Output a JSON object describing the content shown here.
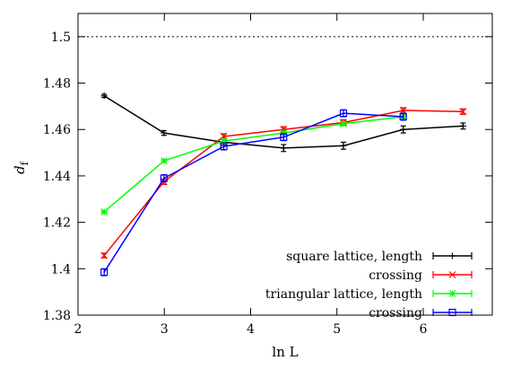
{
  "chart_data": {
    "type": "line",
    "xlabel": "ln L",
    "ylabel": "d_f",
    "xlim": [
      2,
      6.8
    ],
    "ylim": [
      1.38,
      1.51
    ],
    "x_ticks": [
      "2",
      "3",
      "4",
      "5",
      "6"
    ],
    "y_ticks": [
      "1.38",
      "1.4",
      "1.42",
      "1.44",
      "1.46",
      "1.48",
      "1.5"
    ],
    "grid": false,
    "legend_position": "bottom-right",
    "reference_line": {
      "y": 1.5,
      "style": "dotted"
    },
    "series": [
      {
        "name": "square lattice, length",
        "color": "#000000",
        "marker": "plus",
        "x": [
          2.303,
          2.996,
          3.689,
          4.382,
          5.075,
          5.768,
          6.461
        ],
        "y": [
          1.4745,
          1.4585,
          1.4545,
          1.452,
          1.453,
          1.46,
          1.4615
        ],
        "err": [
          0.0007,
          0.001,
          0.0012,
          0.0015,
          0.0015,
          0.0015,
          0.0013
        ]
      },
      {
        "name": "crossing",
        "color": "#ff0000",
        "marker": "x",
        "x": [
          2.303,
          2.996,
          3.689,
          4.382,
          5.075,
          5.768,
          6.461
        ],
        "y": [
          1.4057,
          1.4375,
          1.457,
          1.46,
          1.463,
          1.4682,
          1.4677
        ],
        "err": [
          0.001,
          0.0012,
          0.0012,
          0.0012,
          0.0012,
          0.0012,
          0.0012
        ]
      },
      {
        "name": "triangular lattice, length",
        "color": "#00ff00",
        "marker": "star",
        "x": [
          2.303,
          2.996,
          3.689,
          4.382,
          5.075,
          5.768
        ],
        "y": [
          1.4245,
          1.4465,
          1.455,
          1.4585,
          1.4625,
          1.4655
        ],
        "err": [
          0.0005,
          0.0006,
          0.0008,
          0.0008,
          0.0008,
          0.0008
        ]
      },
      {
        "name": "crossing",
        "color": "#0000ff",
        "marker": "square",
        "x": [
          2.303,
          2.996,
          3.689,
          4.382,
          5.075,
          5.768
        ],
        "y": [
          1.3985,
          1.439,
          1.4527,
          1.4567,
          1.467,
          1.4655
        ],
        "err": [
          0.0015,
          0.0015,
          0.0015,
          0.0015,
          0.0015,
          0.0015
        ]
      }
    ]
  }
}
